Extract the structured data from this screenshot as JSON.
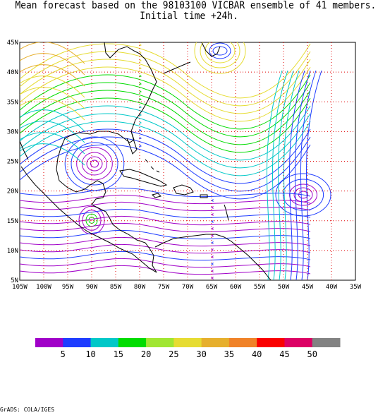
{
  "title_line1": "Mean forecast based on the 98103100 VICBAR ensemble of 41 members.",
  "title_line2": "Initial time +24h.",
  "lat_labels": [
    "45N",
    "40N",
    "35N",
    "30N",
    "25N",
    "20N",
    "15N",
    "10N",
    "5N"
  ],
  "lon_labels": [
    "105W",
    "100W",
    "95W",
    "90W",
    "85W",
    "80W",
    "75W",
    "70W",
    "65W",
    "60W",
    "55W",
    "50W",
    "45W",
    "40W",
    "35W"
  ],
  "colorbar": {
    "colors": [
      "#a000c8",
      "#1e3cff",
      "#00c8c8",
      "#00dc00",
      "#a0e632",
      "#e6dc32",
      "#e6af2d",
      "#f08228",
      "#fa0000",
      "#dc0064",
      "#828282"
    ],
    "labels": [
      "5",
      "10",
      "15",
      "20",
      "25",
      "30",
      "35",
      "40",
      "45",
      "50"
    ]
  },
  "credit": "GrADS: COLA/IGES"
}
